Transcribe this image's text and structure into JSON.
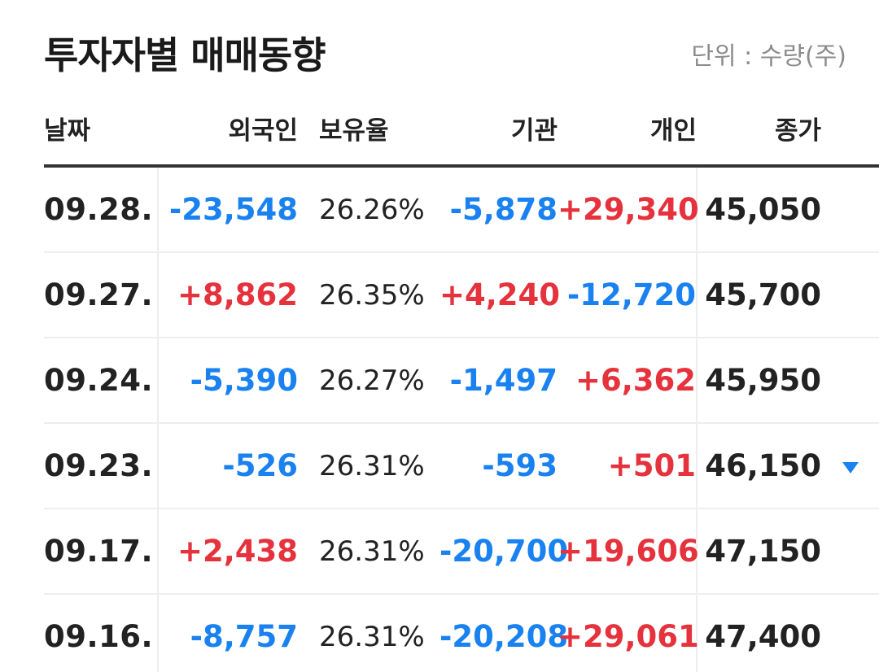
{
  "header": {
    "title": "투자자별 매매동향",
    "unit": "단위 : 수량(주)"
  },
  "columns": {
    "date": "날짜",
    "foreign": "외국인",
    "ratio": "보유율",
    "institution": "기관",
    "individual": "개인",
    "close": "종가"
  },
  "colors": {
    "up": "#e5323c",
    "down": "#1a82f0"
  },
  "rows": [
    {
      "date": "09.28.",
      "foreign": "-23,548",
      "ratio": "26.26%",
      "institution": "-5,878",
      "individual": "+29,340",
      "close": "45,050",
      "trend": ""
    },
    {
      "date": "09.27.",
      "foreign": "+8,862",
      "ratio": "26.35%",
      "institution": "+4,240",
      "individual": "-12,720",
      "close": "45,700",
      "trend": ""
    },
    {
      "date": "09.24.",
      "foreign": "-5,390",
      "ratio": "26.27%",
      "institution": "-1,497",
      "individual": "+6,362",
      "close": "45,950",
      "trend": ""
    },
    {
      "date": "09.23.",
      "foreign": "-526",
      "ratio": "26.31%",
      "institution": "-593",
      "individual": "+501",
      "close": "46,150",
      "trend": "down-triangle-icon"
    },
    {
      "date": "09.17.",
      "foreign": "+2,438",
      "ratio": "26.31%",
      "institution": "-20,700",
      "individual": "+19,606",
      "close": "47,150",
      "trend": ""
    },
    {
      "date": "09.16.",
      "foreign": "-8,757",
      "ratio": "26.31%",
      "institution": "-20,208",
      "individual": "+29,061",
      "close": "47,400",
      "trend": ""
    }
  ]
}
